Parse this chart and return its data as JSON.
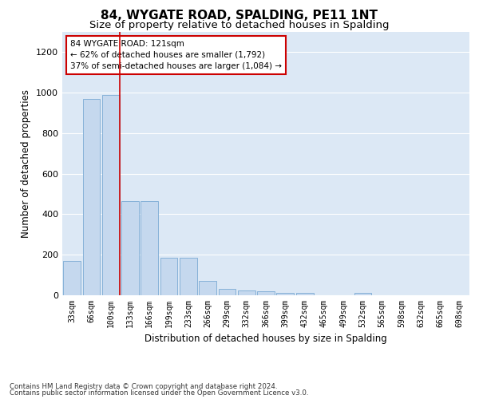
{
  "title": "84, WYGATE ROAD, SPALDING, PE11 1NT",
  "subtitle": "Size of property relative to detached houses in Spalding",
  "xlabel": "Distribution of detached houses by size in Spalding",
  "ylabel": "Number of detached properties",
  "footnote1": "Contains HM Land Registry data © Crown copyright and database right 2024.",
  "footnote2": "Contains public sector information licensed under the Open Government Licence v3.0.",
  "categories": [
    "33sqm",
    "66sqm",
    "100sqm",
    "133sqm",
    "166sqm",
    "199sqm",
    "233sqm",
    "266sqm",
    "299sqm",
    "332sqm",
    "366sqm",
    "399sqm",
    "432sqm",
    "465sqm",
    "499sqm",
    "532sqm",
    "565sqm",
    "598sqm",
    "632sqm",
    "665sqm",
    "698sqm"
  ],
  "values": [
    170,
    970,
    990,
    465,
    465,
    185,
    185,
    70,
    30,
    25,
    20,
    12,
    12,
    0,
    0,
    12,
    0,
    0,
    0,
    0,
    0
  ],
  "bar_color": "#c5d8ee",
  "bar_edge_color": "#7aaad4",
  "highlight_bar_index": 2,
  "highlight_line_color": "#cc0000",
  "annotation_text": "84 WYGATE ROAD: 121sqm\n← 62% of detached houses are smaller (1,792)\n37% of semi-detached houses are larger (1,084) →",
  "annotation_box_color": "#cc0000",
  "ylim": [
    0,
    1300
  ],
  "yticks": [
    0,
    200,
    400,
    600,
    800,
    1000,
    1200
  ],
  "bg_color": "#dce8f5",
  "grid_color": "#ffffff",
  "title_fontsize": 11,
  "subtitle_fontsize": 9.5,
  "axis_label_fontsize": 8.5,
  "tick_fontsize": 8,
  "xtick_fontsize": 7,
  "annotation_fontsize": 7.5
}
